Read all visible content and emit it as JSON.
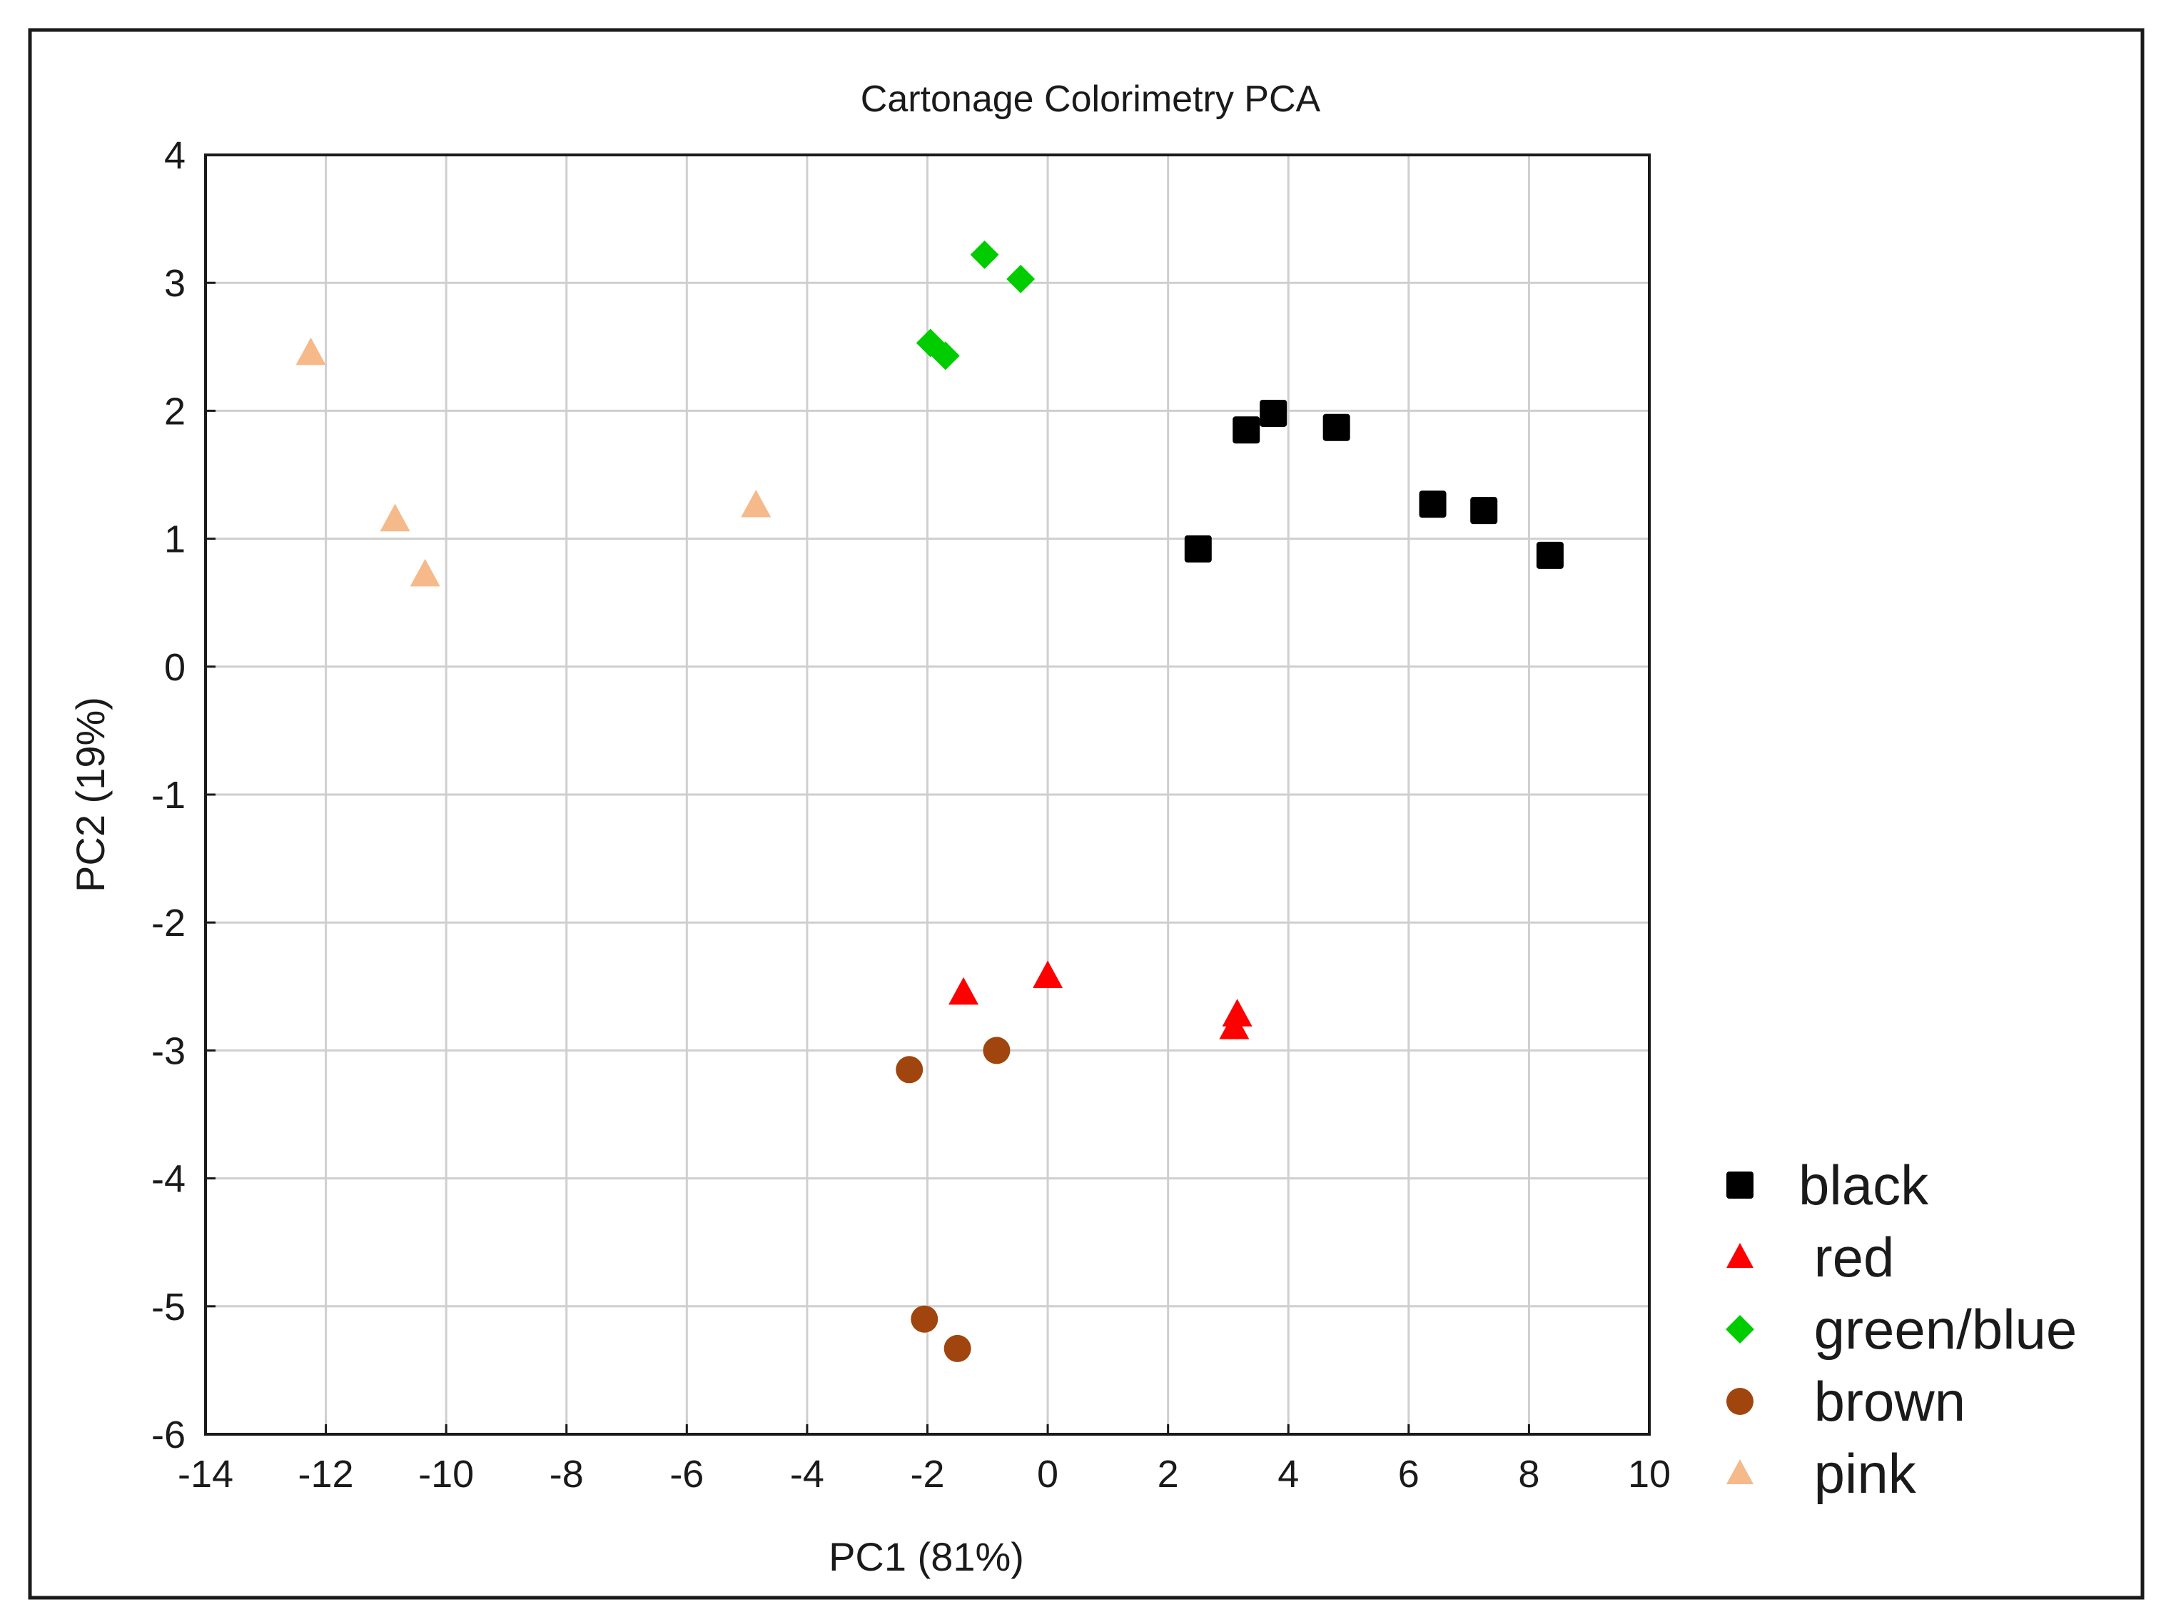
{
  "chart_data": {
    "type": "scatter",
    "title": "Cartonage Colorimetry PCA",
    "xlabel": "PC1 (81%)",
    "ylabel": "PC2 (19%)",
    "xlim": [
      -14,
      10
    ],
    "ylim": [
      -6,
      4
    ],
    "x_ticks": [
      -14,
      -12,
      -10,
      -8,
      -6,
      -4,
      -2,
      0,
      2,
      4,
      6,
      8,
      10
    ],
    "y_ticks": [
      -6,
      -5,
      -4,
      -3,
      -2,
      -1,
      0,
      1,
      2,
      3,
      4
    ],
    "grid": true,
    "legend_position": "bottom-right",
    "series": [
      {
        "name": "black",
        "label": "black",
        "marker": "square",
        "color": "#000000",
        "points": [
          {
            "x": 2.5,
            "y": 0.92
          },
          {
            "x": 3.3,
            "y": 1.85
          },
          {
            "x": 3.75,
            "y": 1.98
          },
          {
            "x": 4.8,
            "y": 1.87
          },
          {
            "x": 6.4,
            "y": 1.27
          },
          {
            "x": 7.25,
            "y": 1.22
          },
          {
            "x": 8.35,
            "y": 0.87
          }
        ]
      },
      {
        "name": "red",
        "label": " red",
        "marker": "triangle",
        "color": "#ff0000",
        "points": [
          {
            "x": -1.4,
            "y": -2.55
          },
          {
            "x": 0.0,
            "y": -2.42
          },
          {
            "x": 3.15,
            "y": -2.72
          },
          {
            "x": 3.1,
            "y": -2.82
          }
        ]
      },
      {
        "name": "green/blue",
        "label": " green/blue",
        "marker": "diamond",
        "color": "#00cc00",
        "points": [
          {
            "x": -1.05,
            "y": 3.22
          },
          {
            "x": -0.45,
            "y": 3.03
          },
          {
            "x": -1.95,
            "y": 2.53
          },
          {
            "x": -1.7,
            "y": 2.43
          }
        ]
      },
      {
        "name": "brown",
        "label": " brown",
        "marker": "circle",
        "color": "#a0450e",
        "points": [
          {
            "x": -2.3,
            "y": -3.15
          },
          {
            "x": -0.85,
            "y": -3.0
          },
          {
            "x": -2.05,
            "y": -5.1
          },
          {
            "x": -1.5,
            "y": -5.33
          }
        ]
      },
      {
        "name": "pink",
        "label": " pink",
        "marker": "triangle",
        "color": "#f6b98a",
        "points": [
          {
            "x": -12.25,
            "y": 2.45
          },
          {
            "x": -10.85,
            "y": 1.15
          },
          {
            "x": -10.35,
            "y": 0.72
          },
          {
            "x": -4.85,
            "y": 1.26
          }
        ]
      }
    ]
  }
}
